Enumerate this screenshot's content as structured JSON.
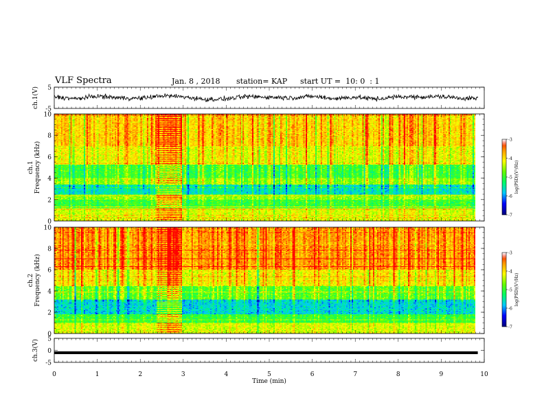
{
  "header": {
    "title": "VLF Spectra",
    "date": "Jan. 8 , 2018",
    "station": "station= KAP",
    "start": "start UT =  10: 0  : 1"
  },
  "colors": {
    "colormap": [
      "#00007f",
      "#0000ff",
      "#00c8ff",
      "#00ff66",
      "#66ff00",
      "#ffff00",
      "#ff9900",
      "#ff0000",
      "#ffffff"
    ]
  },
  "chart_data": [
    {
      "id": "ch1-waveform",
      "type": "line",
      "ylabel": "ch.1(V)",
      "ylim": [
        -5,
        5
      ],
      "yticks": [
        "5",
        "-5"
      ],
      "xlim": [
        0,
        10
      ],
      "description_series": "ch.1 voltage waveform, noisy signal oscillating roughly between -2 and 2 V",
      "series": [
        {
          "x": [
            0,
            0.5,
            1,
            1.5,
            2,
            2.5,
            3,
            3.5,
            4,
            4.5,
            5,
            5.5,
            6,
            6.5,
            7,
            7.5,
            8,
            8.5,
            9,
            9.5,
            9.85
          ],
          "values": [
            0.5,
            -0.5,
            0.8,
            0,
            -0.3,
            1.0,
            0.5,
            -0.8,
            -0.5,
            0.6,
            0.3,
            0,
            0.7,
            -0.4,
            0.3,
            -0.6,
            0.5,
            0.4,
            0.6,
            -0.2,
            -0.3
          ]
        }
      ]
    },
    {
      "id": "ch1-spectrogram",
      "type": "heatmap",
      "ylabel": "ch.1\nFrequency (kHz)",
      "ylim": [
        0,
        10
      ],
      "yticks": [
        "0",
        "2",
        "4",
        "6",
        "8",
        "10"
      ],
      "xlim": [
        0,
        10
      ],
      "colorbar": {
        "label": "log(PSD)(V²/Hz)",
        "range": [
          -7,
          -3
        ],
        "ticks": [
          "-3",
          "-4",
          "-5",
          "-6",
          "-7"
        ]
      },
      "bands_khz": [
        {
          "from": 0,
          "to": 1.2,
          "level": -4.3
        },
        {
          "from": 1.2,
          "to": 2.0,
          "level": -5.0
        },
        {
          "from": 2.0,
          "to": 2.5,
          "level": -4.6
        },
        {
          "from": 2.5,
          "to": 3.4,
          "level": -5.6
        },
        {
          "from": 3.4,
          "to": 4.0,
          "level": -4.6
        },
        {
          "from": 4.0,
          "to": 5.3,
          "level": -5.0
        },
        {
          "from": 5.3,
          "to": 7.0,
          "level": -4.2
        },
        {
          "from": 7.0,
          "to": 10,
          "level": -3.9
        }
      ],
      "burst_minutes": [
        2.4,
        3.0
      ]
    },
    {
      "id": "ch2-spectrogram",
      "type": "heatmap",
      "ylabel": "ch.2\nFrequency (kHz)",
      "ylim": [
        0,
        10
      ],
      "yticks": [
        "0",
        "2",
        "4",
        "6",
        "8",
        "10"
      ],
      "xlim": [
        0,
        10
      ],
      "colorbar": {
        "label": "log(PSD)(V²/Hz)",
        "range": [
          -7,
          -3
        ],
        "ticks": [
          "-3",
          "-4",
          "-5",
          "-6",
          "-7"
        ]
      },
      "bands_khz": [
        {
          "from": 0,
          "to": 1.0,
          "level": -4.3
        },
        {
          "from": 1.0,
          "to": 1.8,
          "level": -5.0
        },
        {
          "from": 1.8,
          "to": 3.2,
          "level": -5.7
        },
        {
          "from": 3.2,
          "to": 4.5,
          "level": -4.8
        },
        {
          "from": 4.5,
          "to": 6.0,
          "level": -4.1
        },
        {
          "from": 6.0,
          "to": 10,
          "level": -3.6
        }
      ],
      "burst_minutes": [
        2.4,
        3.0
      ]
    },
    {
      "id": "ch3-waveform",
      "type": "line",
      "ylabel": "ch.3(V)",
      "ylim": [
        -5,
        5
      ],
      "yticks": [
        "5",
        "0",
        "-5"
      ],
      "xlim": [
        0,
        10
      ],
      "series": [
        {
          "x": [
            0,
            9.85
          ],
          "values": [
            -1,
            -1
          ]
        }
      ]
    }
  ],
  "xaxis": {
    "label": "Time (min)",
    "ticks": [
      "0",
      "1",
      "2",
      "3",
      "4",
      "5",
      "6",
      "7",
      "8",
      "9",
      "10"
    ]
  }
}
